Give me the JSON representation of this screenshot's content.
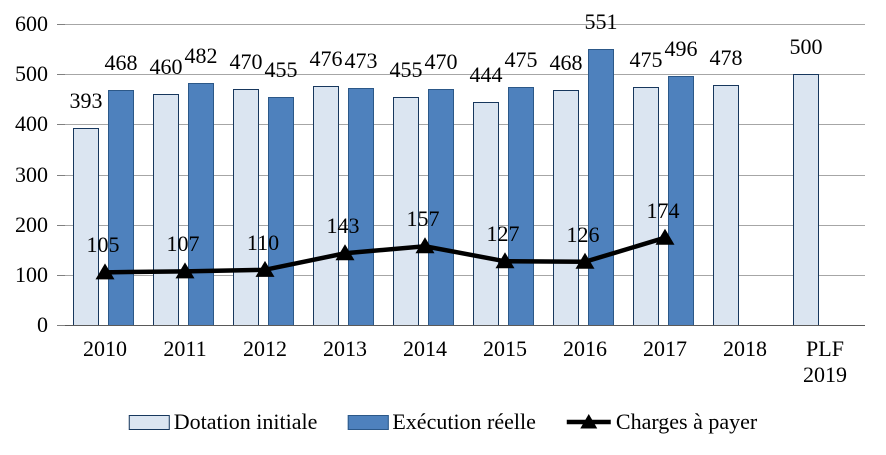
{
  "chart_data": {
    "type": "combo-bar-line",
    "categories": [
      "2010",
      "2011",
      "2012",
      "2013",
      "2014",
      "2015",
      "2016",
      "2017",
      "2018",
      "PLF\n2019"
    ],
    "series": [
      {
        "name": "Dotation initiale",
        "type": "bar",
        "color": "#dbe5f1",
        "border": "#17375d",
        "values": [
          393,
          460,
          470,
          476,
          455,
          444,
          468,
          475,
          478,
          500
        ]
      },
      {
        "name": "Exécution réelle",
        "type": "bar",
        "color": "#4e81bd",
        "border": "#2c5888",
        "values": [
          468,
          482,
          455,
          473,
          470,
          475,
          551,
          496,
          null,
          null
        ]
      },
      {
        "name": "Charges à payer",
        "type": "line",
        "color": "#000000",
        "marker": "triangle",
        "values": [
          105,
          107,
          110,
          143,
          157,
          127,
          126,
          174,
          null,
          null
        ]
      }
    ],
    "ylim": [
      0,
      600
    ],
    "ytick_step": 100,
    "ytick_labels": [
      "0",
      "100",
      "200",
      "300",
      "400",
      "500",
      "600"
    ],
    "grid": "horizontal",
    "legend_position": "bottom",
    "styles": {
      "gridline_color": "#a6a6a6",
      "baseline_color": "#595959",
      "tick_color": "#808080",
      "text_color": "#000000",
      "line_color": "#000000"
    }
  }
}
